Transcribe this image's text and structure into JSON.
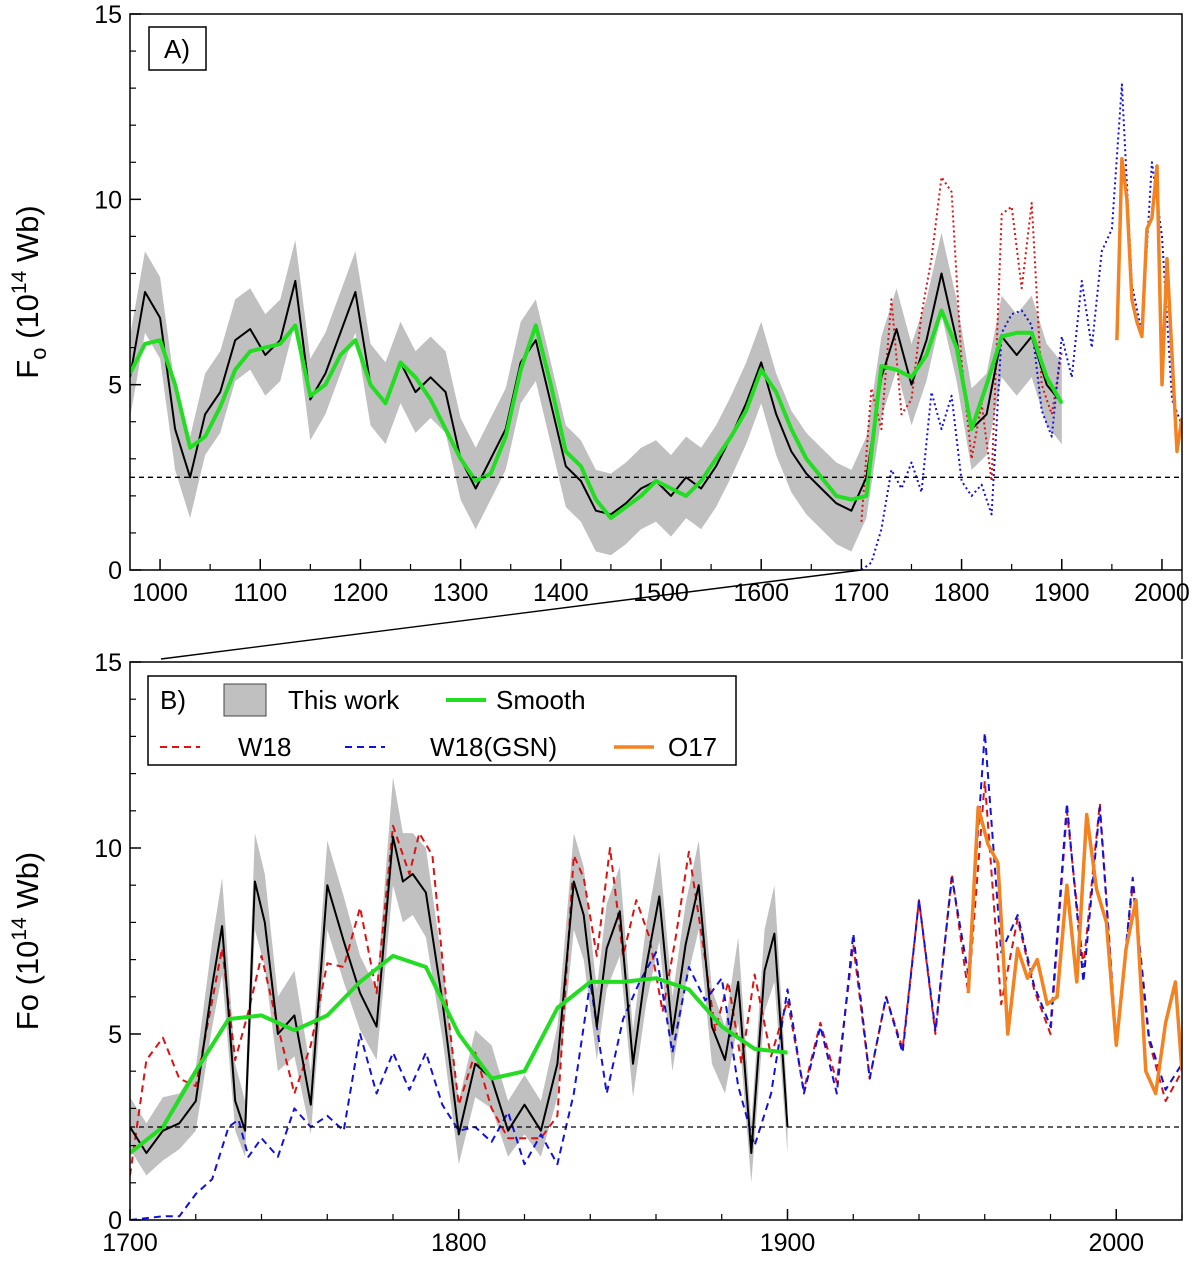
{
  "chart_data": [
    {
      "panel": "A)",
      "type": "line",
      "ylabel": {
        "main": "F",
        "sub": "o",
        "rest": " (10",
        "sup": "14",
        "end": " Wb)"
      },
      "xlim": [
        970,
        2020
      ],
      "ylim": [
        0,
        15
      ],
      "xticks": [
        1000,
        1100,
        1200,
        1300,
        1400,
        1500,
        1600,
        1700,
        1800,
        1900,
        2000
      ],
      "yticks": [
        0,
        5,
        10,
        15
      ],
      "xtick_labels": [
        "1000",
        "1100",
        "1200",
        "1300",
        "1400",
        "1500",
        "1600",
        "1700",
        "1800",
        "1900",
        "2000"
      ],
      "ytick_labels": [
        "0",
        "5",
        "10",
        "15"
      ],
      "reference_line": 2.5,
      "series": [
        {
          "name": "This work",
          "style": "black-line-grey-band",
          "x": [
            970,
            985,
            1000,
            1015,
            1030,
            1045,
            1060,
            1075,
            1090,
            1105,
            1120,
            1135,
            1150,
            1165,
            1180,
            1195,
            1210,
            1225,
            1240,
            1255,
            1270,
            1285,
            1300,
            1315,
            1330,
            1345,
            1360,
            1375,
            1390,
            1405,
            1420,
            1435,
            1450,
            1465,
            1480,
            1495,
            1510,
            1525,
            1540,
            1555,
            1570,
            1585,
            1600,
            1615,
            1630,
            1645,
            1660,
            1675,
            1690,
            1705,
            1720,
            1735,
            1750,
            1765,
            1780,
            1795,
            1810,
            1825,
            1840,
            1855,
            1870,
            1885,
            1900
          ],
          "y": [
            5.2,
            7.5,
            6.8,
            3.8,
            2.5,
            4.2,
            4.8,
            6.2,
            6.5,
            5.8,
            6.2,
            7.8,
            4.6,
            5.3,
            6.4,
            7.5,
            5.0,
            4.5,
            5.6,
            4.8,
            5.2,
            4.8,
            3.0,
            2.2,
            3.0,
            3.8,
            5.6,
            6.2,
            4.5,
            2.8,
            2.4,
            1.6,
            1.5,
            1.8,
            2.2,
            2.4,
            2.0,
            2.5,
            2.2,
            2.8,
            3.6,
            4.5,
            5.6,
            4.2,
            3.2,
            2.6,
            2.2,
            1.8,
            1.6,
            2.5,
            5.2,
            6.5,
            5.0,
            6.2,
            8.0,
            6.2,
            3.8,
            4.2,
            6.3,
            5.8,
            6.3,
            5.0,
            4.5
          ]
        },
        {
          "name": "Smooth",
          "x": [
            970,
            985,
            1000,
            1015,
            1030,
            1045,
            1060,
            1075,
            1090,
            1105,
            1120,
            1135,
            1150,
            1165,
            1180,
            1195,
            1210,
            1225,
            1240,
            1255,
            1270,
            1285,
            1300,
            1315,
            1330,
            1345,
            1360,
            1375,
            1390,
            1405,
            1420,
            1435,
            1450,
            1465,
            1480,
            1495,
            1510,
            1525,
            1540,
            1555,
            1570,
            1585,
            1600,
            1615,
            1630,
            1645,
            1660,
            1675,
            1690,
            1705,
            1720,
            1735,
            1750,
            1765,
            1780,
            1795,
            1810,
            1825,
            1840,
            1855,
            1870,
            1885,
            1900
          ],
          "y": [
            5.3,
            6.1,
            6.2,
            5.0,
            3.3,
            3.6,
            4.4,
            5.4,
            5.9,
            6.0,
            6.1,
            6.6,
            4.7,
            5.0,
            5.8,
            6.2,
            5.0,
            4.5,
            5.6,
            5.2,
            4.6,
            3.8,
            3.0,
            2.4,
            2.6,
            3.6,
            5.4,
            6.6,
            5.0,
            3.2,
            2.8,
            1.9,
            1.4,
            1.7,
            2.0,
            2.4,
            2.2,
            2.0,
            2.4,
            3.0,
            3.6,
            4.3,
            5.4,
            4.8,
            3.8,
            3.0,
            2.5,
            2.0,
            1.9,
            2.0,
            5.5,
            5.4,
            5.2,
            5.8,
            7.0,
            6.0,
            3.8,
            5.0,
            6.3,
            6.4,
            6.4,
            5.2,
            4.5
          ]
        },
        {
          "name": "W18",
          "style": "red-dotted",
          "x": [
            1700,
            1710,
            1720,
            1730,
            1740,
            1750,
            1760,
            1770,
            1780,
            1790,
            1800,
            1810,
            1820,
            1830,
            1840,
            1850,
            1860,
            1870,
            1880,
            1890,
            1900
          ],
          "y": [
            1.3,
            4.9,
            3.8,
            7.3,
            4.2,
            4.6,
            6.9,
            8.4,
            10.6,
            10.2,
            5.6,
            3.0,
            4.5,
            2.4,
            9.6,
            9.8,
            7.6,
            9.9,
            5.0,
            4.2,
            5.9
          ]
        },
        {
          "name": "W18(GSN)",
          "style": "blue-dotted",
          "x": [
            1700,
            1710,
            1720,
            1730,
            1740,
            1750,
            1760,
            1770,
            1780,
            1790,
            1800,
            1810,
            1820,
            1830,
            1840,
            1850,
            1860,
            1870,
            1880,
            1890,
            1900,
            1910,
            1920,
            1930,
            1940,
            1950,
            1960,
            1970,
            1980,
            1990,
            2000,
            2010,
            2020
          ],
          "y": [
            0.0,
            0.2,
            1.1,
            2.7,
            2.2,
            2.9,
            2.1,
            4.8,
            3.8,
            4.7,
            2.4,
            2.0,
            2.3,
            1.5,
            6.4,
            6.9,
            7.0,
            6.6,
            4.3,
            3.6,
            6.3,
            5.2,
            7.8,
            6.0,
            8.6,
            9.2,
            13.1,
            7.7,
            6.4,
            11.0,
            9.0,
            4.6,
            3.9
          ]
        },
        {
          "name": "O17",
          "style": "orange-solid",
          "x": [
            1955,
            1960,
            1965,
            1970,
            1975,
            1980,
            1985,
            1990,
            1995,
            2000,
            2005,
            2010,
            2015,
            2020
          ],
          "y": [
            6.2,
            11.1,
            10.0,
            7.3,
            6.7,
            6.3,
            9.2,
            9.5,
            10.9,
            5.0,
            8.4,
            5.8,
            3.2,
            4.1
          ]
        }
      ]
    },
    {
      "panel": "B)",
      "type": "line",
      "ylabel": {
        "main": "Fo",
        "rest": " (10",
        "sup": "14",
        "end": " Wb)"
      },
      "xlim": [
        1700,
        2020
      ],
      "ylim": [
        0,
        15
      ],
      "xticks": [
        1700,
        1800,
        1900,
        2000
      ],
      "yticks": [
        0,
        5,
        10,
        15
      ],
      "xtick_labels": [
        "1700",
        "1800",
        "1900",
        "2000"
      ],
      "ytick_labels": [
        "0",
        "5",
        "10",
        "15"
      ],
      "reference_line": 2.5,
      "legend": {
        "panel_label": "B)",
        "entries": [
          {
            "label": "This work",
            "swatch": "grey-box"
          },
          {
            "label": "Smooth",
            "swatch": "green-line"
          },
          {
            "label": "W18",
            "swatch": "red-dash"
          },
          {
            "label": "W18(GSN)",
            "swatch": "blue-dash"
          },
          {
            "label": "O17",
            "swatch": "orange-line"
          }
        ]
      },
      "series": [
        {
          "name": "This work",
          "x": [
            1700,
            1705,
            1710,
            1715,
            1720,
            1725,
            1728,
            1732,
            1735,
            1738,
            1741,
            1745,
            1750,
            1755,
            1760,
            1765,
            1770,
            1775,
            1780,
            1783,
            1786,
            1790,
            1795,
            1800,
            1805,
            1810,
            1815,
            1820,
            1825,
            1830,
            1835,
            1838,
            1842,
            1845,
            1849,
            1853,
            1857,
            1861,
            1865,
            1869,
            1873,
            1877,
            1881,
            1885,
            1889,
            1893,
            1896,
            1900
          ],
          "y": [
            2.5,
            1.8,
            2.4,
            2.6,
            3.2,
            6.3,
            7.9,
            3.2,
            2.4,
            9.1,
            8.0,
            5.0,
            5.5,
            3.1,
            9.0,
            7.5,
            6.1,
            5.2,
            10.3,
            9.1,
            9.3,
            8.8,
            5.9,
            2.3,
            4.2,
            3.8,
            2.4,
            3.1,
            2.4,
            4.2,
            9.1,
            8.2,
            5.2,
            7.3,
            8.3,
            4.2,
            6.8,
            8.7,
            5.0,
            7.4,
            9.0,
            5.2,
            4.3,
            6.4,
            1.8,
            6.7,
            7.7,
            2.5
          ],
          "band_low": [
            1.9,
            1.2,
            1.6,
            1.9,
            2.4,
            5.2,
            6.6,
            2.4,
            1.7,
            7.8,
            6.8,
            4.0,
            4.4,
            2.3,
            7.8,
            6.4,
            5.1,
            4.3,
            9.0,
            8.0,
            8.2,
            7.6,
            4.9,
            1.5,
            3.3,
            3.0,
            1.7,
            2.3,
            1.7,
            3.3,
            7.8,
            7.0,
            4.3,
            6.2,
            7.1,
            3.3,
            5.8,
            7.5,
            4.0,
            6.3,
            7.8,
            4.2,
            3.4,
            5.3,
            1.0,
            5.6,
            6.4,
            1.8
          ],
          "band_high": [
            3.3,
            2.6,
            3.3,
            3.4,
            4.1,
            7.5,
            9.2,
            4.2,
            3.2,
            10.4,
            9.3,
            6.0,
            6.7,
            4.0,
            10.2,
            8.7,
            7.1,
            6.2,
            11.9,
            10.4,
            10.4,
            10.0,
            6.9,
            3.2,
            5.1,
            4.7,
            3.2,
            3.9,
            3.2,
            5.2,
            10.4,
            9.5,
            6.2,
            8.5,
            9.5,
            5.1,
            7.9,
            9.9,
            6.0,
            8.5,
            10.2,
            6.2,
            5.2,
            7.6,
            2.6,
            7.8,
            9.0,
            3.2
          ]
        },
        {
          "name": "Smooth",
          "x": [
            1700,
            1710,
            1720,
            1730,
            1740,
            1750,
            1760,
            1770,
            1780,
            1790,
            1800,
            1810,
            1820,
            1830,
            1840,
            1850,
            1860,
            1870,
            1880,
            1890,
            1900
          ],
          "y": [
            1.8,
            2.5,
            4.0,
            5.4,
            5.5,
            5.1,
            5.5,
            6.4,
            7.1,
            6.8,
            5.0,
            3.8,
            4.0,
            5.7,
            6.4,
            6.4,
            6.5,
            6.2,
            5.2,
            4.6,
            4.5
          ]
        },
        {
          "name": "W18",
          "x": [
            1700,
            1705,
            1710,
            1715,
            1720,
            1725,
            1728,
            1732,
            1736,
            1740,
            1745,
            1750,
            1755,
            1760,
            1765,
            1770,
            1775,
            1780,
            1785,
            1788,
            1792,
            1796,
            1800,
            1805,
            1810,
            1815,
            1820,
            1825,
            1830,
            1835,
            1838,
            1842,
            1846,
            1850,
            1854,
            1858,
            1862,
            1866,
            1870,
            1874,
            1878,
            1882,
            1886,
            1890,
            1895,
            1900,
            1905,
            1910,
            1915,
            1920,
            1925,
            1930,
            1935,
            1940,
            1945,
            1950,
            1955,
            1960,
            1965,
            1970,
            1975,
            1980,
            1985,
            1990,
            1995,
            2000,
            2005,
            2010,
            2015,
            2020
          ],
          "y": [
            1.2,
            4.3,
            4.9,
            3.8,
            3.6,
            5.9,
            7.3,
            4.3,
            5.6,
            7.1,
            5.2,
            3.4,
            4.7,
            6.9,
            6.8,
            8.4,
            6.1,
            10.6,
            9.3,
            10.4,
            9.8,
            6.1,
            3.1,
            4.5,
            3.0,
            2.2,
            2.2,
            2.2,
            2.8,
            9.8,
            9.2,
            7.1,
            10.0,
            7.1,
            8.6,
            7.6,
            5.6,
            7.6,
            9.9,
            7.6,
            5.1,
            6.4,
            4.2,
            6.6,
            4.4,
            5.9,
            3.5,
            5.3,
            3.7,
            7.4,
            3.8,
            6.0,
            4.6,
            8.6,
            5.0,
            9.3,
            6.1,
            11.8,
            5.8,
            8.1,
            6.2,
            5.0,
            11.0,
            6.8,
            11.2,
            4.8,
            9.0,
            4.8,
            3.2,
            4.0
          ]
        },
        {
          "name": "W18(GSN)",
          "x": [
            1700,
            1710,
            1715,
            1720,
            1725,
            1730,
            1733,
            1736,
            1740,
            1745,
            1750,
            1755,
            1760,
            1765,
            1770,
            1775,
            1780,
            1785,
            1790,
            1795,
            1800,
            1805,
            1810,
            1815,
            1820,
            1825,
            1830,
            1835,
            1840,
            1845,
            1850,
            1855,
            1860,
            1865,
            1870,
            1875,
            1880,
            1885,
            1890,
            1895,
            1900,
            1905,
            1910,
            1915,
            1920,
            1925,
            1930,
            1935,
            1940,
            1945,
            1950,
            1955,
            1960,
            1965,
            1970,
            1975,
            1980,
            1985,
            1990,
            1995,
            2000,
            2005,
            2010,
            2015,
            2020
          ],
          "y": [
            0.0,
            0.1,
            0.1,
            0.7,
            1.1,
            2.5,
            2.7,
            1.7,
            2.2,
            1.7,
            3.0,
            2.5,
            2.8,
            2.4,
            5.0,
            3.4,
            4.5,
            3.5,
            4.5,
            3.1,
            2.4,
            2.5,
            2.1,
            2.9,
            1.5,
            2.3,
            1.5,
            3.4,
            6.4,
            3.4,
            5.4,
            6.4,
            7.2,
            4.5,
            6.8,
            5.9,
            6.5,
            3.6,
            2.0,
            3.4,
            6.2,
            3.4,
            5.2,
            3.4,
            7.7,
            3.8,
            6.0,
            4.5,
            8.6,
            5.1,
            9.2,
            6.6,
            13.1,
            7.2,
            8.2,
            6.3,
            5.2,
            11.2,
            6.4,
            11.1,
            4.7,
            9.2,
            4.9,
            3.5,
            4.2
          ]
        },
        {
          "name": "O17",
          "x": [
            1955,
            1958,
            1961,
            1964,
            1967,
            1970,
            1973,
            1976,
            1979,
            1982,
            1985,
            1988,
            1991,
            1994,
            1997,
            2000,
            2003,
            2006,
            2009,
            2012,
            2015,
            2018,
            2020
          ],
          "y": [
            6.1,
            11.1,
            10.1,
            9.6,
            5.0,
            7.3,
            6.5,
            7.0,
            5.8,
            6.0,
            9.0,
            6.4,
            10.9,
            8.9,
            8.0,
            4.7,
            7.3,
            8.6,
            4.0,
            3.4,
            5.3,
            6.4,
            4.0
          ]
        }
      ]
    }
  ]
}
